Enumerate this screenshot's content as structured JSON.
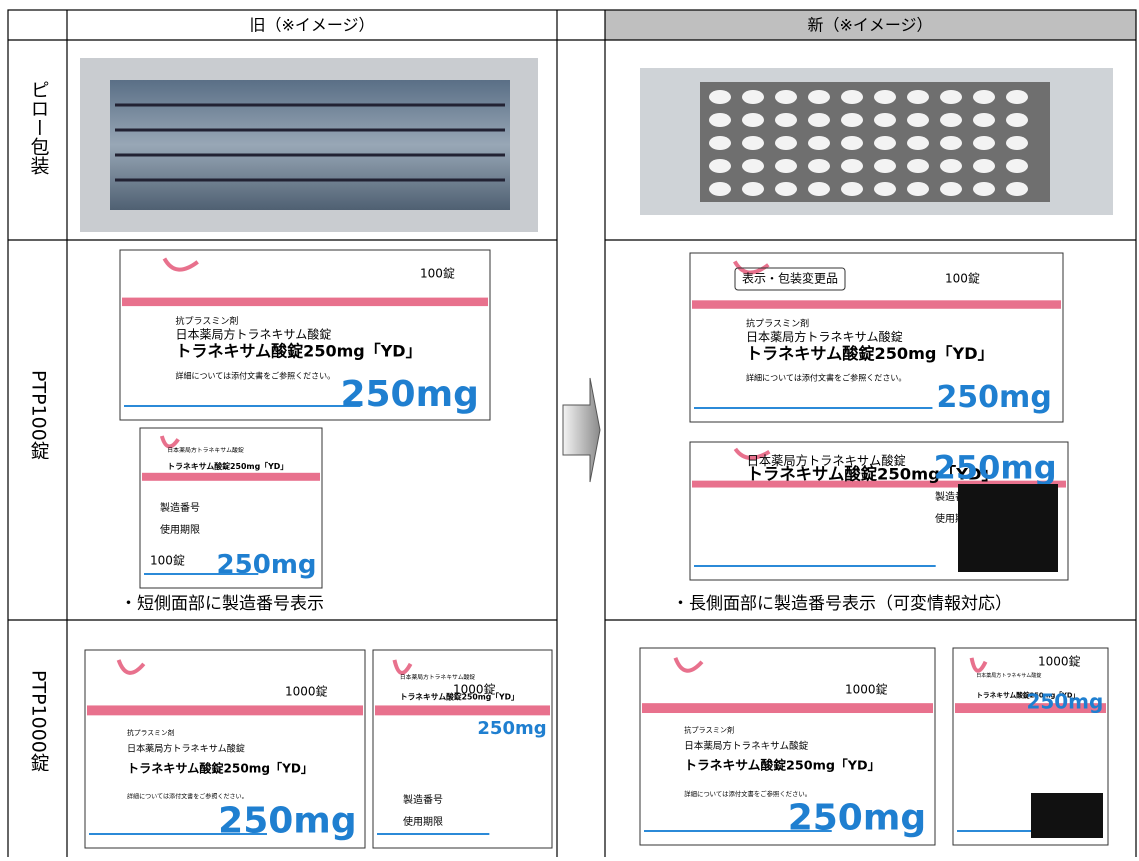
{
  "header": {
    "old": "旧（※イメージ）",
    "new": "新（※イメージ）"
  },
  "rows": [
    {
      "label": "ピロー包装"
    },
    {
      "label": "PTP100錠",
      "old_caption": "・短側面部に製造番号表示",
      "new_caption": "・長側面部に製造番号表示（可変情報対応）"
    },
    {
      "label": "PTP1000錠"
    }
  ],
  "package_text": {
    "category": "抗プラスミン剤",
    "jp_name": "日本薬局方トラネキサム酸錠",
    "brand": "トラネキサム酸錠250mg「YD」",
    "strength": "250mg",
    "count100": "100錠",
    "count1000": "1000錠",
    "note": "詳細については添付文書をご参照ください。",
    "changed": "表示・包装変更品",
    "lot": "製造番号",
    "expiry": "使用期限"
  }
}
